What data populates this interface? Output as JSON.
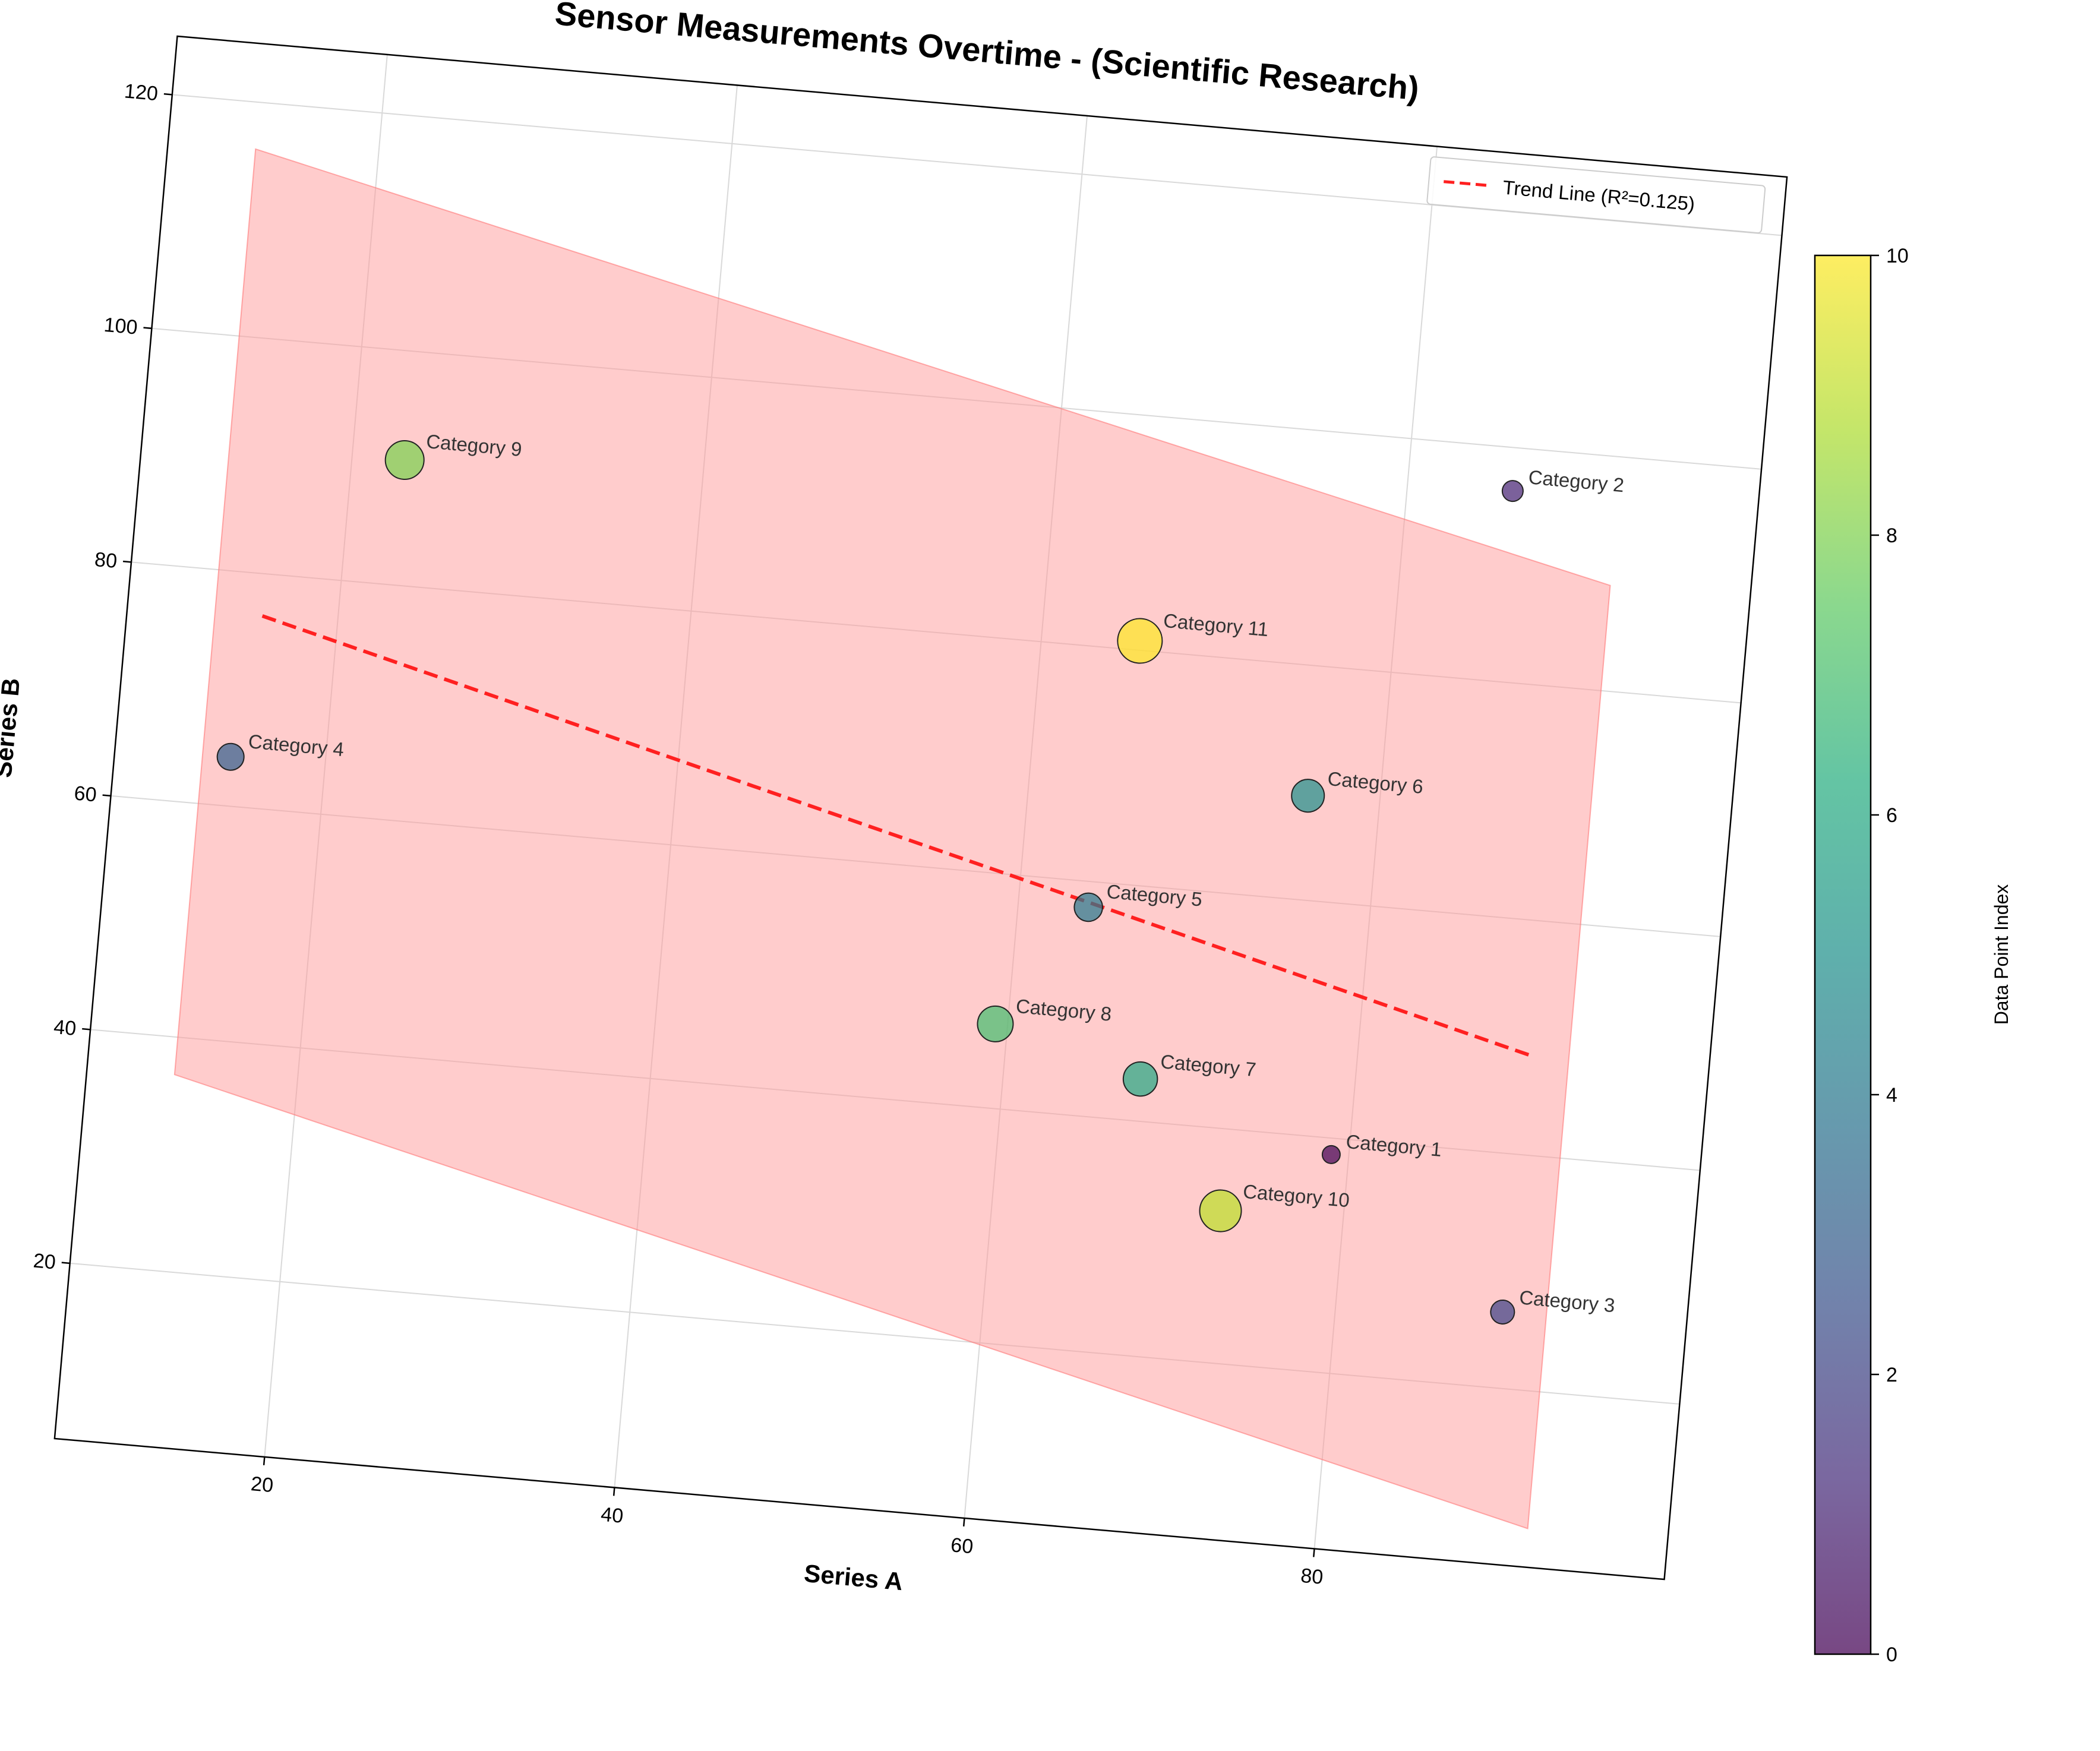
{
  "chart_data": {
    "type": "scatter",
    "title": "Sensor Measurements Overtime - (Scientific Research)",
    "xlabel": "Series A",
    "ylabel": "Series B",
    "xlim": [
      8,
      100
    ],
    "ylim": [
      5,
      125
    ],
    "xticks": [
      20,
      40,
      60,
      80
    ],
    "yticks": [
      20,
      40,
      60,
      80,
      100,
      120
    ],
    "grid": true,
    "rotation_deg": 5,
    "points": [
      {
        "label": "Category 1",
        "x": 79.0,
        "y": 38.6,
        "size": 12,
        "color_index": 0
      },
      {
        "label": "Category 2",
        "x": 86.0,
        "y": 96.3,
        "size": 14,
        "color_index": 1
      },
      {
        "label": "Category 3",
        "x": 89.5,
        "y": 26.5,
        "size": 16,
        "color_index": 2
      },
      {
        "label": "Category 4",
        "x": 14.6,
        "y": 64.2,
        "size": 18,
        "color_index": 3
      },
      {
        "label": "Category 5",
        "x": 64.0,
        "y": 57.8,
        "size": 19,
        "color_index": 4
      },
      {
        "label": "Category 6",
        "x": 75.9,
        "y": 68.9,
        "size": 22,
        "color_index": 5
      },
      {
        "label": "Category 7",
        "x": 67.8,
        "y": 43.6,
        "size": 23,
        "color_index": 6
      },
      {
        "label": "Category 8",
        "x": 59.3,
        "y": 47.2,
        "size": 24,
        "color_index": 7
      },
      {
        "label": "Category 9",
        "x": 23.0,
        "y": 90.7,
        "size": 26,
        "color_index": 8
      },
      {
        "label": "Category 10",
        "x": 73.0,
        "y": 33.0,
        "size": 28,
        "color_index": 9
      },
      {
        "label": "Category 11",
        "x": 65.6,
        "y": 80.8,
        "size": 30,
        "color_index": 10
      }
    ],
    "trend_line": {
      "label": "Trend Line (R²=0.125)",
      "x": [
        15.7,
        89.8
      ],
      "y": [
        76.4,
        48.5
      ],
      "color": "#ff2020",
      "style": "dashed"
    },
    "confidence_band": {
      "color": "#ff9999",
      "x": [
        13.0,
        92.0
      ],
      "upper": [
        116.0,
        89.0
      ],
      "lower": [
        36.8,
        8.3
      ]
    },
    "legend": {
      "placement": "top-right",
      "entries": [
        "Trend Line (R²=0.125)"
      ]
    },
    "colorbar": {
      "label": "Data Point Index",
      "range": [
        0,
        10
      ],
      "ticks": [
        0,
        2,
        4,
        6,
        8,
        10
      ],
      "colormap": "viridis",
      "alpha": 0.7
    }
  }
}
